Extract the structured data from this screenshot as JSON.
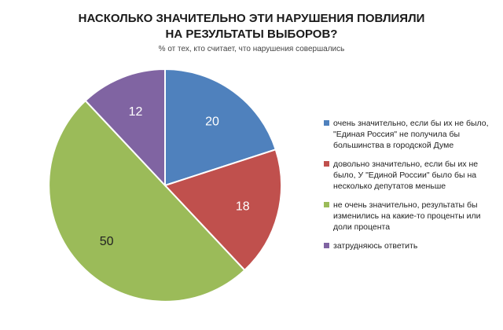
{
  "title_line1": "НАСКОЛЬКО ЗНАЧИТЕЛЬНО ЭТИ НАРУШЕНИЯ ПОВЛИЯЛИ",
  "title_line2": "НА РЕЗУЛЬТАТЫ ВЫБОРОВ?",
  "subtitle": "% от тех, кто считает, что нарушения совершались",
  "chart_data": {
    "type": "pie",
    "title": "НАСКОЛЬКО ЗНАЧИТЕЛЬНО ЭТИ НАРУШЕНИЯ ПОВЛИЯЛИ НА РЕЗУЛЬТАТЫ ВЫБОРОВ?",
    "subtitle": "% от тех, кто считает, что нарушения совершались",
    "legend_position": "right",
    "slices": [
      {
        "label": "очень значительно, если бы их не было, \"Единая Россия\" не получила бы большинства в городской Думе",
        "value": 20,
        "color": "#4f81bd",
        "label_color": "#ffffff"
      },
      {
        "label": "довольно значительно, если бы их не было, У \"Единой России\" было бы на несколько депутатов меньше",
        "value": 18,
        "color": "#c0504d",
        "label_color": "#ffffff"
      },
      {
        "label": "не очень значительно, результаты бы изменились на какие-то проценты или доли процента",
        "value": 50,
        "color": "#9bbb59",
        "label_color": "#222222"
      },
      {
        "label": "затрудняюсь ответить",
        "value": 12,
        "color": "#8064a2",
        "label_color": "#ffffff"
      }
    ]
  }
}
